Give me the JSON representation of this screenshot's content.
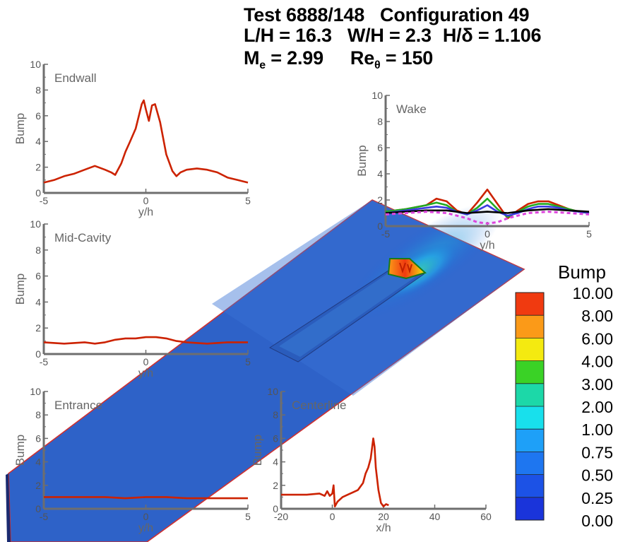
{
  "header": {
    "line1": {
      "test": "Test 6888/148",
      "config": "Configuration 49"
    },
    "line2": {
      "lh": "L/H = 16.3",
      "wh": "W/H = 2.3",
      "hd": "H/δ = 1.106"
    },
    "line3": {
      "me_base": "M",
      "me_sub": "e",
      "me_val": " = 2.99",
      "re_base": "Re",
      "re_sub": "θ",
      "re_val": " = 150"
    }
  },
  "colorbar": {
    "title": "Bump",
    "labels": [
      "10.00",
      "8.00",
      "6.00",
      "4.00",
      "3.00",
      "2.00",
      "1.00",
      "0.75",
      "0.50",
      "0.25",
      "0.00"
    ],
    "colors": [
      "#f03a10",
      "#fb9a18",
      "#f4ea10",
      "#3ad226",
      "#1cd8a8",
      "#18e0ec",
      "#1ea0f8",
      "#1e76f0",
      "#1c52e6",
      "#1a34da",
      "#1216c8"
    ]
  },
  "chart_data": [
    {
      "type": "line",
      "panel": "endwall",
      "title": "Endwall",
      "xlabel": "y/h",
      "ylabel": "Bump",
      "xlim": [
        -5,
        5
      ],
      "ylim": [
        0,
        10
      ],
      "xticks": [
        -5,
        0,
        5
      ],
      "xtick_labels": [
        "-5",
        "0",
        "5"
      ],
      "yticks": [
        0,
        2,
        4,
        6,
        8,
        10
      ],
      "ytick_labels": [
        "0",
        "2",
        "4",
        "6",
        "8",
        "10"
      ],
      "series": [
        {
          "color": "#cc2200",
          "dashed": false,
          "x": [
            -5,
            -4.5,
            -4,
            -3.5,
            -3,
            -2.5,
            -2,
            -1.7,
            -1.5,
            -1.2,
            -1,
            -0.8,
            -0.5,
            -0.2,
            -0.1,
            0,
            0.15,
            0.3,
            0.45,
            0.7,
            1,
            1.3,
            1.5,
            1.7,
            2,
            2.5,
            3,
            3.5,
            4,
            4.5,
            5
          ],
          "y": [
            0.8,
            1,
            1.3,
            1.5,
            1.8,
            2.1,
            1.8,
            1.6,
            1.4,
            2.3,
            3.2,
            3.9,
            5,
            6.9,
            7.2,
            6.5,
            5.6,
            6.8,
            6.9,
            5.5,
            3,
            1.7,
            1.3,
            1.6,
            1.8,
            1.9,
            1.8,
            1.6,
            1.2,
            1,
            0.8
          ]
        }
      ]
    },
    {
      "type": "line",
      "panel": "wake",
      "title": "Wake",
      "xlabel": "y/h",
      "ylabel": "Bump",
      "xlim": [
        -5,
        5
      ],
      "ylim": [
        0,
        10
      ],
      "xticks": [
        -5,
        0,
        5
      ],
      "xtick_labels": [
        "-5",
        "0",
        "5"
      ],
      "yticks": [
        0,
        2,
        4,
        6,
        8,
        10
      ],
      "ytick_labels": [
        "0",
        "2",
        "4",
        "6",
        "8",
        "10"
      ],
      "series": [
        {
          "color": "#cc2200",
          "dashed": false,
          "x": [
            -5,
            -4,
            -3,
            -2.5,
            -2,
            -1.5,
            -1,
            -0.5,
            0,
            0.5,
            1,
            1.5,
            2,
            2.5,
            3,
            3.5,
            4,
            4.5,
            5
          ],
          "y": [
            1.1,
            1.3,
            1.6,
            2.1,
            1.9,
            1.2,
            0.9,
            1.8,
            2.8,
            1.7,
            0.6,
            1.2,
            1.7,
            1.9,
            1.9,
            1.6,
            1.3,
            1.1,
            1.0
          ]
        },
        {
          "color": "#22aa22",
          "dashed": false,
          "x": [
            -5,
            -4,
            -3,
            -2.5,
            -2,
            -1.5,
            -1,
            -0.5,
            0,
            0.5,
            1,
            1.5,
            2,
            2.5,
            3,
            3.5,
            4,
            4.5,
            5
          ],
          "y": [
            1.1,
            1.3,
            1.6,
            1.8,
            1.6,
            1.1,
            0.9,
            1.4,
            2.1,
            1.3,
            0.7,
            1.1,
            1.5,
            1.7,
            1.7,
            1.5,
            1.3,
            1.1,
            1.0
          ]
        },
        {
          "color": "#3a3ae0",
          "dashed": false,
          "x": [
            -5,
            -4,
            -3,
            -2.5,
            -2,
            -1.5,
            -1,
            -0.5,
            0,
            0.5,
            1,
            1.5,
            2,
            2.5,
            3,
            3.5,
            4,
            4.5,
            5
          ],
          "y": [
            1.0,
            1.2,
            1.4,
            1.5,
            1.4,
            1.1,
            0.9,
            1.2,
            1.6,
            1.1,
            0.8,
            1.0,
            1.3,
            1.5,
            1.5,
            1.4,
            1.2,
            1.1,
            1.0
          ]
        },
        {
          "color": "#000000",
          "dashed": false,
          "x": [
            -5,
            -4,
            -3,
            -2,
            -1,
            0,
            1,
            2,
            3,
            4,
            5
          ],
          "y": [
            1.0,
            1.1,
            1.2,
            1.2,
            1.0,
            1.1,
            1.0,
            1.2,
            1.3,
            1.2,
            1.1
          ]
        },
        {
          "color": "#dd44dd",
          "dashed": true,
          "x": [
            -5,
            -4,
            -3,
            -2,
            -1,
            -0.5,
            0,
            0.5,
            1,
            2,
            3,
            4,
            5
          ],
          "y": [
            0.9,
            1.0,
            1.1,
            1.0,
            0.6,
            0.3,
            0.2,
            0.3,
            0.6,
            1.0,
            1.1,
            1.0,
            0.9
          ]
        }
      ]
    },
    {
      "type": "line",
      "panel": "midcavity",
      "title": "Mid-Cavity",
      "xlabel": "y/h",
      "ylabel": "Bump",
      "xlim": [
        -5,
        5
      ],
      "ylim": [
        0,
        10
      ],
      "xticks": [
        -5,
        0,
        5
      ],
      "xtick_labels": [
        "-5",
        "0",
        "5"
      ],
      "yticks": [
        0,
        2,
        4,
        6,
        8,
        10
      ],
      "ytick_labels": [
        "0",
        "2",
        "4",
        "6",
        "8",
        "10"
      ],
      "series": [
        {
          "color": "#cc2200",
          "dashed": false,
          "x": [
            -5,
            -4,
            -3,
            -2.5,
            -2,
            -1.5,
            -1,
            -0.5,
            0,
            0.5,
            1,
            1.5,
            2,
            3,
            4,
            5
          ],
          "y": [
            0.9,
            0.8,
            0.9,
            0.8,
            0.9,
            1.1,
            1.2,
            1.2,
            1.3,
            1.3,
            1.2,
            1.0,
            0.9,
            0.8,
            0.9,
            0.9
          ]
        }
      ]
    },
    {
      "type": "line",
      "panel": "entrance",
      "title": "Entrance",
      "xlabel": "y/h",
      "ylabel": "Bump",
      "xlim": [
        -5,
        5
      ],
      "ylim": [
        0,
        10
      ],
      "xticks": [
        -5,
        0,
        5
      ],
      "xtick_labels": [
        "-5",
        "0",
        "5"
      ],
      "yticks": [
        0,
        2,
        4,
        6,
        8,
        10
      ],
      "ytick_labels": [
        "0",
        "2",
        "4",
        "6",
        "8",
        "10"
      ],
      "series": [
        {
          "color": "#cc2200",
          "dashed": false,
          "x": [
            -5,
            -4,
            -3,
            -2,
            -1,
            0,
            1,
            2,
            3,
            4,
            5
          ],
          "y": [
            1.0,
            1.0,
            1.0,
            1.0,
            0.9,
            1.0,
            1.0,
            0.9,
            0.9,
            0.9,
            0.9
          ]
        }
      ]
    },
    {
      "type": "line",
      "panel": "centerline",
      "title": "Centerline",
      "xlabel": "x/h",
      "ylabel": "Bump",
      "xlim": [
        -20,
        60
      ],
      "ylim": [
        0,
        10
      ],
      "xticks": [
        -20,
        0,
        20,
        40,
        60
      ],
      "xtick_labels": [
        "-20",
        "0",
        "20",
        "40",
        "60"
      ],
      "yticks": [
        0,
        2,
        4,
        6,
        8,
        10
      ],
      "ytick_labels": [
        "0",
        "2",
        "4",
        "6",
        "8",
        "10"
      ],
      "series": [
        {
          "color": "#cc2200",
          "dashed": false,
          "x": [
            -20,
            -15,
            -10,
            -5,
            -3,
            -2,
            -1,
            0,
            0.5,
            1,
            2,
            4,
            6,
            8,
            10,
            12,
            13,
            14,
            15,
            16,
            16.5,
            17,
            18,
            19,
            20,
            21,
            22
          ],
          "y": [
            1.2,
            1.2,
            1.2,
            1.3,
            1.1,
            1.5,
            1.1,
            1.3,
            2.0,
            0.2,
            0.6,
            1.0,
            1.2,
            1.4,
            1.6,
            2.2,
            3.0,
            3.5,
            4.3,
            6.0,
            5.3,
            3.5,
            1.6,
            0.5,
            0.2,
            0.4,
            0.3
          ]
        }
      ]
    }
  ]
}
